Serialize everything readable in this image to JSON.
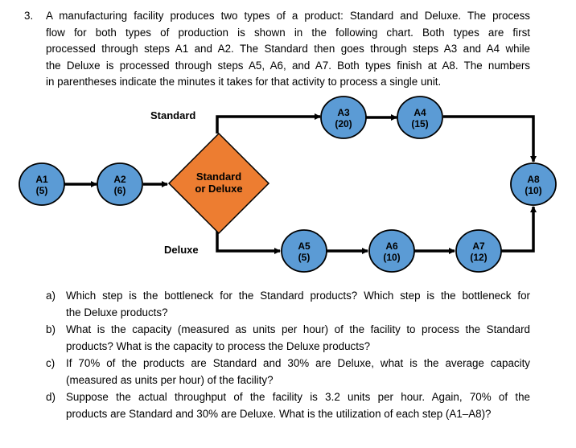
{
  "problem": {
    "number": "3.",
    "lines": [
      "A manufacturing facility produces two types of a product: Standard and Deluxe. The process",
      "flow for both types of production is shown in the following chart. Both types are first",
      "processed through steps A1 and A2. The Standard then goes through steps A3 and A4 while",
      "the Deluxe is processed through steps A5, A6, and A7. Both types finish at A8. The numbers",
      "in parentheses indicate the minutes it takes for that activity to process a single unit."
    ]
  },
  "diagram": {
    "colors": {
      "node_fill": "#5b9bd5",
      "decision_fill": "#ed7d31",
      "stroke": "#000000"
    },
    "branch_standard": "Standard",
    "branch_deluxe": "Deluxe",
    "decision": {
      "line1": "Standard",
      "line2": "or Deluxe"
    },
    "nodes": [
      {
        "id": "A1",
        "time": "(5)"
      },
      {
        "id": "A2",
        "time": "(6)"
      },
      {
        "id": "A3",
        "time": "(20)"
      },
      {
        "id": "A4",
        "time": "(15)"
      },
      {
        "id": "A5",
        "time": "(5)"
      },
      {
        "id": "A6",
        "time": "(10)"
      },
      {
        "id": "A7",
        "time": "(12)"
      },
      {
        "id": "A8",
        "time": "(10)"
      }
    ]
  },
  "questions": [
    {
      "label": "a)",
      "lines": [
        "Which step is the bottleneck for the Standard products? Which step is the bottleneck for",
        "the Deluxe products?"
      ]
    },
    {
      "label": "b)",
      "lines": [
        "What is the capacity (measured as units per hour) of the facility to process the Standard",
        "products? What is the capacity to process the Deluxe products?"
      ]
    },
    {
      "label": "c)",
      "lines": [
        "If 70% of the products are Standard and 30% are Deluxe, what is the average capacity",
        "(measured as units per hour) of the facility?"
      ]
    },
    {
      "label": "d)",
      "lines": [
        "Suppose the actual throughput of the facility is 3.2 units per hour. Again, 70% of the",
        "products are Standard and 30% are Deluxe. What is the utilization of each step (A1–A8)?"
      ]
    }
  ]
}
